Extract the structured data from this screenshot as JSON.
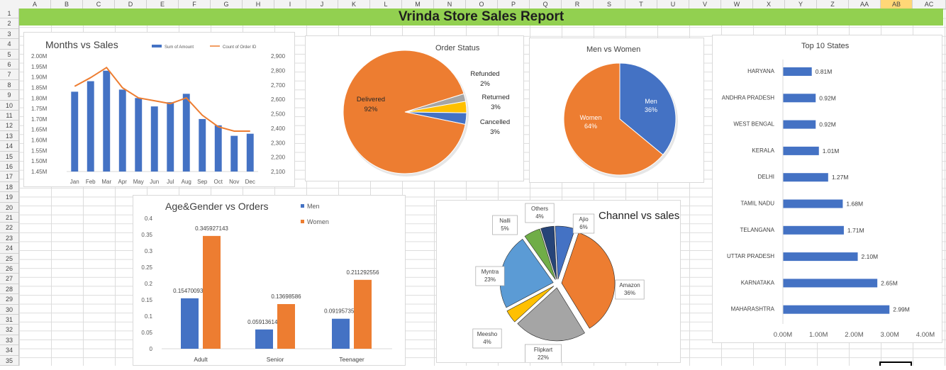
{
  "sheet": {
    "columns": [
      "A",
      "B",
      "C",
      "D",
      "E",
      "F",
      "G",
      "H",
      "I",
      "J",
      "K",
      "L",
      "M",
      "N",
      "O",
      "P",
      "Q",
      "R",
      "S",
      "T",
      "U",
      "V",
      "W",
      "X",
      "Y",
      "Z",
      "AA",
      "AB",
      "AC"
    ],
    "selected_column": "AB",
    "rows": [
      "1",
      "2",
      "3",
      "4",
      "5",
      "6",
      "7",
      "8",
      "9",
      "10",
      "11",
      "12",
      "13",
      "14",
      "15",
      "16",
      "17",
      "18",
      "19",
      "20",
      "21",
      "22",
      "23",
      "24",
      "25",
      "26",
      "27",
      "28",
      "29",
      "30",
      "31",
      "32",
      "33",
      "34",
      "35"
    ],
    "banner_title": "Vrinda Store Sales Report"
  },
  "colors": {
    "blue": "#4472c4",
    "orange": "#ed7d31",
    "gray": "#a5a5a5",
    "gold": "#ffc000",
    "lightblue": "#5b9bd5",
    "green": "#70ad47",
    "navy": "#264478",
    "banner": "#92d050"
  },
  "chart_data": [
    {
      "type": "bar",
      "title": "Months vs Sales",
      "legend": [
        "Sum of Amount",
        "Count of Order ID"
      ],
      "legend_position": "top",
      "categories": [
        "Jan",
        "Feb",
        "Mar",
        "Apr",
        "May",
        "Jun",
        "Jul",
        "Aug",
        "Sep",
        "Oct",
        "Nov",
        "Dec"
      ],
      "series": [
        {
          "name": "Sum of Amount",
          "axis": "left",
          "values": [
            1.83,
            1.88,
            1.93,
            1.84,
            1.8,
            1.76,
            1.78,
            1.82,
            1.7,
            1.67,
            1.62,
            1.63
          ]
        },
        {
          "name": "Count of Order ID",
          "axis": "right",
          "values": [
            2690,
            2750,
            2820,
            2680,
            2610,
            2590,
            2570,
            2610,
            2490,
            2410,
            2380,
            2380
          ]
        }
      ],
      "left_ticks": [
        "1.45M",
        "1.50M",
        "1.55M",
        "1.60M",
        "1.65M",
        "1.70M",
        "1.75M",
        "1.80M",
        "1.85M",
        "1.90M",
        "1.95M",
        "2.00M"
      ],
      "right_ticks": [
        "2,100",
        "2,200",
        "2,300",
        "2,400",
        "2,500",
        "2,600",
        "2,700",
        "2,800",
        "2,900"
      ],
      "ylim": [
        1.45,
        2.0
      ],
      "y2lim": [
        2100,
        2900
      ]
    },
    {
      "type": "pie",
      "title": "Order Status",
      "slices": [
        {
          "label": "Delivered",
          "pct": "92%",
          "value": 92,
          "color": "#ed7d31"
        },
        {
          "label": "Refunded",
          "pct": "2%",
          "value": 2,
          "color": "#a5a5a5"
        },
        {
          "label": "Returned",
          "pct": "3%",
          "value": 3,
          "color": "#ffc000"
        },
        {
          "label": "Cancelled",
          "pct": "3%",
          "value": 3,
          "color": "#4472c4"
        }
      ]
    },
    {
      "type": "pie",
      "title": "Men vs Women",
      "slices": [
        {
          "label": "Men",
          "pct": "36%",
          "value": 36,
          "color": "#4472c4"
        },
        {
          "label": "Women",
          "pct": "64%",
          "value": 64,
          "color": "#ed7d31"
        }
      ]
    },
    {
      "type": "bar",
      "title": "Top 10 States",
      "orientation": "horizontal",
      "categories": [
        "HARYANA",
        "ANDHRA PRADESH",
        "WEST BENGAL",
        "KERALA",
        "DELHI",
        "TAMIL NADU",
        "TELANGANA",
        "UTTAR PRADESH",
        "KARNATAKA",
        "MAHARASHTRA"
      ],
      "values": [
        0.81,
        0.92,
        0.92,
        1.01,
        1.27,
        1.68,
        1.71,
        2.1,
        2.65,
        2.99
      ],
      "value_labels": [
        "0.81M",
        "0.92M",
        "0.92M",
        "1.01M",
        "1.27M",
        "1.68M",
        "1.71M",
        "2.10M",
        "2.65M",
        "2.99M"
      ],
      "x_ticks": [
        "0.00M",
        "1.00M",
        "2.00M",
        "3.00M",
        "4.00M"
      ],
      "xlim": [
        0,
        4.0
      ]
    },
    {
      "type": "bar",
      "title": "Age&Gender  vs Orders",
      "legend": [
        "Men",
        "Women"
      ],
      "legend_position": "right",
      "categories": [
        "Adult",
        "Senior",
        "Teenager"
      ],
      "series": [
        {
          "name": "Men",
          "values": [
            0.154700937,
            0.059136148,
            0.091957355
          ],
          "labels": [
            "0.154700937",
            "0.059136148",
            "0.091957355"
          ]
        },
        {
          "name": "Women",
          "values": [
            0.345927143,
            0.13698586,
            0.211292556
          ],
          "labels": [
            "0.345927143",
            "0.13698586",
            "0.211292556"
          ]
        }
      ],
      "y_ticks": [
        "0",
        "0.05",
        "0.1",
        "0.15",
        "0.2",
        "0.25",
        "0.3",
        "0.35",
        "0.4"
      ],
      "ylim": [
        0,
        0.4
      ]
    },
    {
      "type": "pie",
      "title": "Channel vs sales",
      "slices": [
        {
          "label": "Ajio",
          "pct": "6%",
          "value": 6,
          "color": "#4472c4"
        },
        {
          "label": "Amazon",
          "pct": "36%",
          "value": 36,
          "color": "#ed7d31"
        },
        {
          "label": "Flipkart",
          "pct": "22%",
          "value": 22,
          "color": "#a5a5a5"
        },
        {
          "label": "Meesho",
          "pct": "4%",
          "value": 4,
          "color": "#ffc000"
        },
        {
          "label": "Myntra",
          "pct": "23%",
          "value": 23,
          "color": "#5b9bd5"
        },
        {
          "label": "Nalli",
          "pct": "5%",
          "value": 5,
          "color": "#70ad47"
        },
        {
          "label": "Others",
          "pct": "4%",
          "value": 4,
          "color": "#264478"
        }
      ]
    }
  ]
}
